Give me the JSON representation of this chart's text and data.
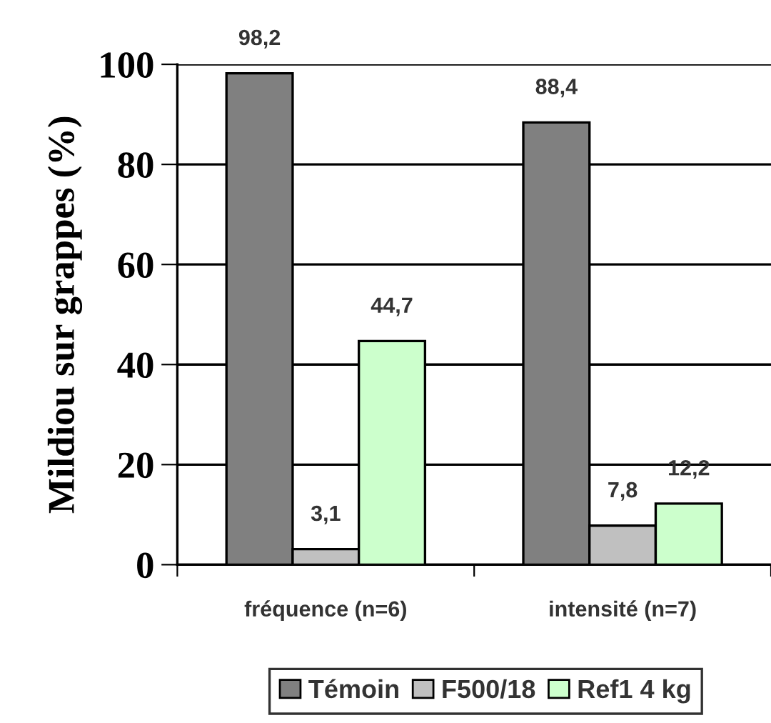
{
  "chart_data": {
    "type": "bar",
    "ylabel": "Mildiou sur grappes (%)",
    "categories": [
      "fréquence (n=6)",
      "intensité (n=7)"
    ],
    "series": [
      {
        "name": "Témoin",
        "color": "#808080",
        "values": [
          98.2,
          88.4
        ],
        "value_labels": [
          "98,2",
          "88,4"
        ]
      },
      {
        "name": "F500/18",
        "color": "#c0c0c0",
        "values": [
          3.1,
          7.8
        ],
        "value_labels": [
          "3,1",
          "7,8"
        ]
      },
      {
        "name": "Ref1 4 kg",
        "color": "#ccffcc",
        "values": [
          44.7,
          12.2
        ],
        "value_labels": [
          "44,7",
          "12,2"
        ]
      }
    ],
    "ylim": [
      0,
      100
    ],
    "yticks": [
      0,
      20,
      40,
      60,
      80,
      100
    ],
    "grid": "y",
    "legend": "bottom"
  }
}
